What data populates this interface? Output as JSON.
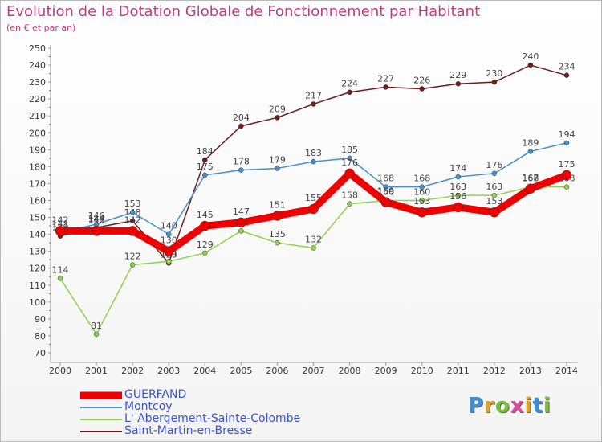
{
  "chart_data": {
    "type": "line",
    "title": "Evolution de la Dotation Globale de Fonctionnement par Habitant",
    "subtitle": "(en € et par an)",
    "xlabel": "",
    "ylabel": "",
    "ylim": [
      70,
      250
    ],
    "ytick_step": 10,
    "categories": [
      "2000",
      "2001",
      "2002",
      "2003",
      "2004",
      "2005",
      "2006",
      "2007",
      "2008",
      "2009",
      "2010",
      "2011",
      "2012",
      "2013",
      "2014"
    ],
    "series": [
      {
        "name": "Saint-Martin-en-Bresse",
        "color": "#6e1c1c",
        "values": [
          139,
          144,
          148,
          123,
          184,
          204,
          209,
          217,
          224,
          227,
          226,
          229,
          230,
          240,
          234
        ]
      },
      {
        "name": "L' Abergement-Sainte-Colombe",
        "color": "#8ed24f",
        "values": [
          114,
          81,
          122,
          124,
          129,
          142,
          135,
          132,
          158,
          160,
          160,
          163,
          163,
          168,
          168
        ]
      },
      {
        "name": "Montcoy",
        "color": "#4a90c8",
        "values": [
          141,
          146,
          153,
          140,
          175,
          178,
          179,
          183,
          185,
          168,
          168,
          174,
          176,
          189,
          194
        ]
      },
      {
        "name": "GUERFAND",
        "color": "#ee0000",
        "values": [
          142,
          142,
          142,
          130,
          145,
          147,
          151,
          155,
          176,
          159,
          153,
          156,
          153,
          167,
          175
        ]
      }
    ],
    "legend": [
      "GUERFAND",
      "Montcoy",
      "L' Abergement-Sainte-Colombe",
      "Saint-Martin-en-Bresse"
    ],
    "legend_position": "bottom-left",
    "grid": false
  },
  "logo": {
    "letters": [
      "P",
      "r",
      "o",
      "x",
      "i",
      "t",
      "i"
    ],
    "colors": [
      "#3b8fd6",
      "#e8a21a",
      "#7cbd3c",
      "#e04a9c",
      "#e8a21a",
      "#3b8fd6",
      "#7cbd3c"
    ]
  }
}
